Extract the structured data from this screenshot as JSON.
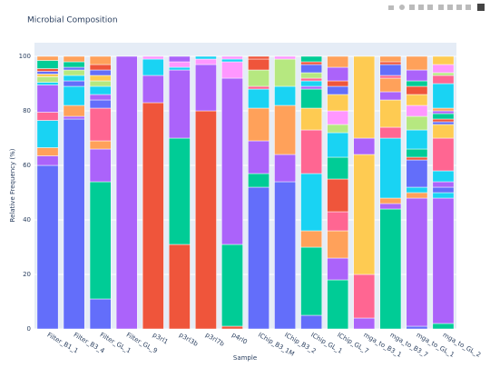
{
  "chart_data": {
    "type": "stacked_bar",
    "title": "Microbial Composition",
    "x_label": "Sample",
    "y_label": "Relative Frequency (%)",
    "categories": [
      "Filter_B1_1",
      "Filter_B3_4",
      "Filter_GL_1",
      "Filter_GL_9",
      "p3rl1",
      "p3rl3b",
      "p3rl7b",
      "p4rl0",
      "IChip_B3_1M",
      "IChip_B3_2",
      "IChip_GL_1",
      "IChip_GL_7",
      "mga_to_B3_1",
      "mga_to_B3_7",
      "mga_to_GL_1",
      "mga_to_GL_2"
    ],
    "ylim": [
      0,
      105
    ],
    "yticks": [
      0,
      20,
      40,
      60,
      80,
      100
    ],
    "grid": true,
    "series": [
      {
        "color": "#636efa",
        "values": [
          60,
          77,
          11,
          0,
          0,
          0,
          0,
          0,
          52,
          54,
          5,
          0,
          0,
          0,
          1,
          0
        ]
      },
      {
        "color": "#EF553B",
        "values": [
          0,
          0,
          0,
          0,
          83,
          31,
          80,
          1,
          0,
          0,
          0,
          0,
          0,
          0,
          0,
          0
        ]
      },
      {
        "color": "#00cc96",
        "values": [
          0,
          0,
          43,
          0,
          0,
          39,
          0,
          30,
          5,
          0,
          25,
          18,
          0,
          44,
          0,
          2
        ]
      },
      {
        "color": "#ab63fa",
        "values": [
          3.5,
          1,
          12,
          100,
          10,
          25,
          17,
          61,
          12,
          10,
          0,
          8,
          4,
          2,
          47,
          46
        ]
      },
      {
        "color": "#FFA15A",
        "values": [
          3,
          4,
          3,
          0,
          0,
          0,
          0,
          0,
          12,
          18,
          6,
          10,
          0,
          2,
          2,
          0
        ]
      },
      {
        "color": "#19d3f3",
        "values": [
          10,
          7,
          0,
          0,
          6,
          1,
          0,
          0,
          7,
          7,
          21,
          0,
          0,
          22,
          2,
          2
        ]
      },
      {
        "color": "#FF6692",
        "values": [
          3,
          0,
          12,
          0,
          0,
          0,
          0,
          0,
          1,
          0,
          16,
          7,
          16,
          4,
          0,
          0
        ]
      },
      {
        "color": "#B6E880",
        "values": [
          0,
          0,
          0,
          0,
          0,
          0,
          0,
          0,
          6,
          10,
          0,
          0,
          0,
          0,
          0,
          0
        ]
      },
      {
        "color": "#FF97FF",
        "values": [
          0,
          0,
          0,
          0,
          0,
          2,
          2,
          6,
          0,
          1,
          0,
          0,
          0,
          0,
          0,
          0
        ]
      },
      {
        "color": "#FECB52",
        "values": [
          0,
          0,
          0,
          0,
          0,
          0,
          0,
          0,
          0,
          0,
          8,
          0,
          44,
          10,
          0,
          0
        ]
      },
      {
        "color": "#636efa",
        "values": [
          0,
          2,
          3,
          0,
          0,
          0,
          0,
          0,
          0,
          0,
          0,
          0,
          0,
          0,
          10,
          2
        ]
      },
      {
        "color": "#EF553B",
        "values": [
          0,
          0,
          0,
          0,
          0,
          0,
          0,
          0,
          4,
          0,
          0,
          12,
          0,
          0,
          1,
          0
        ]
      },
      {
        "color": "#00cc96",
        "values": [
          0,
          0,
          0,
          0,
          0,
          0,
          0,
          0,
          0,
          0,
          7,
          8,
          0,
          0,
          3,
          0
        ]
      },
      {
        "color": "#ab63fa",
        "values": [
          10,
          0,
          2,
          0,
          0,
          2,
          0,
          0,
          0,
          0,
          1,
          0,
          6,
          3,
          0,
          2
        ]
      },
      {
        "color": "#FFA15A",
        "values": [
          0,
          0,
          0,
          0,
          0,
          0,
          0,
          0,
          0,
          0,
          0,
          0,
          0,
          5,
          0,
          0
        ]
      },
      {
        "color": "#19d3f3",
        "values": [
          1,
          2,
          3,
          0,
          0,
          0,
          1,
          1,
          0,
          0,
          2,
          9,
          0,
          0,
          7,
          4
        ]
      },
      {
        "color": "#FF6692",
        "values": [
          0,
          0,
          0,
          0,
          0,
          0,
          0,
          0,
          0,
          0,
          1,
          0,
          0,
          1,
          0,
          12
        ]
      },
      {
        "color": "#B6E880",
        "values": [
          2,
          2,
          2,
          0,
          0,
          0,
          0,
          0,
          0,
          0,
          2,
          3,
          0,
          0,
          5,
          0
        ]
      },
      {
        "color": "#FF97FF",
        "values": [
          0,
          0,
          0,
          0,
          1,
          0,
          0,
          1,
          0,
          0,
          0,
          5,
          0,
          0,
          4,
          0
        ]
      },
      {
        "color": "#FECB52",
        "values": [
          1,
          0,
          2,
          0,
          0,
          0,
          0,
          0,
          0,
          0,
          0,
          6,
          30,
          0,
          4,
          5
        ]
      },
      {
        "color": "#636efa",
        "values": [
          1,
          1,
          2,
          0,
          0,
          0,
          0,
          0,
          0,
          0,
          3,
          3,
          0,
          4,
          0,
          1
        ]
      },
      {
        "color": "#EF553B",
        "values": [
          1,
          0,
          2,
          0,
          0,
          0,
          0,
          0,
          1,
          0,
          1,
          2,
          0,
          1,
          3,
          1
        ]
      },
      {
        "color": "#00cc96",
        "values": [
          3,
          2,
          0,
          0,
          0,
          0,
          0,
          0,
          0,
          0,
          2,
          0,
          0,
          0,
          2,
          2
        ]
      },
      {
        "color": "#ab63fa",
        "values": [
          0,
          0,
          0,
          0,
          0,
          0,
          0,
          0,
          0,
          0,
          0,
          5,
          0,
          0,
          4,
          1
        ]
      },
      {
        "color": "#FFA15A",
        "values": [
          1.5,
          2,
          3,
          0,
          0,
          0,
          0,
          0,
          0,
          0,
          0,
          4,
          0,
          2,
          5,
          1
        ]
      },
      {
        "color": "#19d3f3",
        "values": [
          0,
          0,
          0,
          0,
          0,
          0,
          0,
          0,
          0,
          0,
          0,
          0,
          0,
          0,
          0,
          9
        ]
      },
      {
        "color": "#FF6692",
        "values": [
          0,
          0,
          0,
          0,
          0,
          0,
          0,
          0,
          0,
          0,
          0,
          0,
          0,
          0,
          0,
          3
        ]
      },
      {
        "color": "#B6E880",
        "values": [
          0,
          0,
          0,
          0,
          0,
          0,
          0,
          0,
          0,
          0,
          0,
          0,
          0,
          0,
          0,
          1
        ]
      },
      {
        "color": "#FF97FF",
        "values": [
          0,
          0,
          0,
          0,
          0,
          0,
          0,
          0,
          0,
          0,
          0,
          0,
          0,
          0,
          0,
          3
        ]
      },
      {
        "color": "#FECB52",
        "values": [
          0,
          0,
          0,
          0,
          0,
          0,
          0,
          0,
          0,
          0,
          0,
          0,
          0,
          0,
          0,
          3
        ]
      }
    ]
  }
}
